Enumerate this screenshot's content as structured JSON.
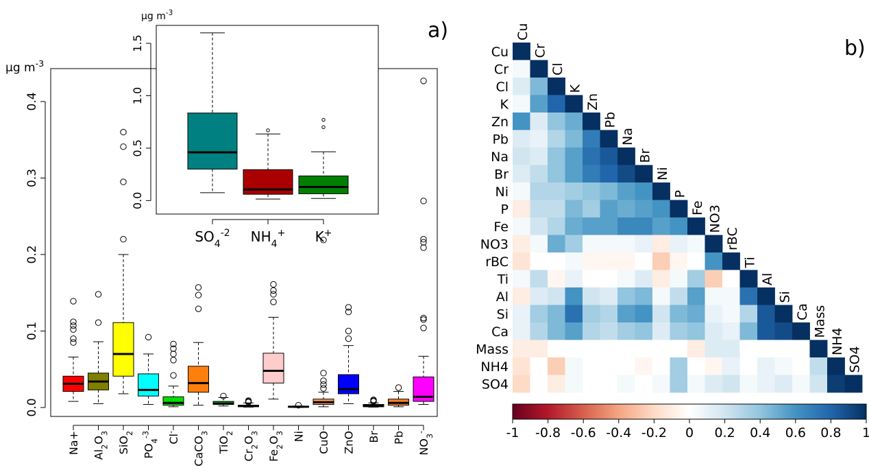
{
  "panels": {
    "a": "a)",
    "b": "b)"
  },
  "chart_data": [
    {
      "type": "box",
      "panel": "a-main",
      "ylabel": "µg m-3",
      "ylim": [
        0,
        0.45
      ],
      "yticks": [
        "0.0",
        "0.1",
        "0.2",
        "0.3",
        "0.4"
      ],
      "ytick_values": [
        0,
        0.1,
        0.2,
        0.3,
        0.4
      ],
      "categories": [
        "Na+",
        "Al2O3",
        "SiO2",
        "PO4-3",
        "Cl-",
        "CaCO3",
        "TiO2",
        "Cr2O3",
        "Fe2O3",
        "Ni",
        "CuO",
        "ZnO",
        "Br",
        "Pb",
        "NO3-"
      ],
      "category_labels": [
        {
          "base": "Na+",
          "sub": "",
          "sup": ""
        },
        {
          "base": "Al",
          "sub": "2",
          "sup": "",
          "tail": "O",
          "tailsub": "3"
        },
        {
          "base": "SiO",
          "sub": "2",
          "sup": ""
        },
        {
          "base": "PO",
          "sub": "4",
          "sup": "-3"
        },
        {
          "base": "Cl",
          "sub": "",
          "sup": "-"
        },
        {
          "base": "CaCO",
          "sub": "3",
          "sup": ""
        },
        {
          "base": "TiO",
          "sub": "2",
          "sup": ""
        },
        {
          "base": "Cr",
          "sub": "2",
          "sup": "",
          "tail": "O",
          "tailsub": "3"
        },
        {
          "base": "Fe",
          "sub": "2",
          "sup": "",
          "tail": "O",
          "tailsub": "3"
        },
        {
          "base": "Ni",
          "sub": "",
          "sup": ""
        },
        {
          "base": "CuO",
          "sub": "",
          "sup": ""
        },
        {
          "base": "ZnO",
          "sub": "",
          "sup": ""
        },
        {
          "base": "Br",
          "sub": "",
          "sup": ""
        },
        {
          "base": "Pb",
          "sub": "",
          "sup": ""
        },
        {
          "base": "NO",
          "sub": "3",
          "sup": "-"
        }
      ],
      "boxes": [
        {
          "color": "#ff0000",
          "wlo": 0.008,
          "q1": 0.021,
          "med": 0.031,
          "q3": 0.041,
          "whi": 0.066,
          "out": [
            0.085,
            0.09,
            0.102,
            0.107,
            0.112,
            0.139
          ]
        },
        {
          "color": "#808000",
          "wlo": 0.005,
          "q1": 0.023,
          "med": 0.034,
          "q3": 0.045,
          "whi": 0.086,
          "out": [
            0.111,
            0.148
          ]
        },
        {
          "color": "#ffff00",
          "wlo": 0.018,
          "q1": 0.041,
          "med": 0.07,
          "q3": 0.111,
          "whi": 0.2,
          "out": [
            0.22,
            0.295,
            0.341,
            0.36
          ]
        },
        {
          "color": "#00ffff",
          "wlo": 0.004,
          "q1": 0.015,
          "med": 0.023,
          "q3": 0.044,
          "whi": 0.07,
          "out": [
            0.092
          ]
        },
        {
          "color": "#00e000",
          "wlo": 0.001,
          "q1": 0.003,
          "med": 0.006,
          "q3": 0.014,
          "whi": 0.028,
          "out": [
            0.042,
            0.062,
            0.07,
            0.077,
            0.083
          ]
        },
        {
          "color": "#ff7f0e",
          "wlo": 0.003,
          "q1": 0.02,
          "med": 0.032,
          "q3": 0.054,
          "whi": 0.085,
          "out": [
            0.129,
            0.147,
            0.157
          ]
        },
        {
          "color": "#00a000",
          "wlo": 0.002,
          "q1": 0.004,
          "med": 0.005,
          "q3": 0.008,
          "whi": 0.013,
          "out": [
            0.015
          ]
        },
        {
          "color": "#000000",
          "wlo": 0.0005,
          "q1": 0.001,
          "med": 0.002,
          "q3": 0.003,
          "whi": 0.006,
          "out": [
            0.007,
            0.008,
            0.009
          ]
        },
        {
          "color": "#ffcccc",
          "wlo": 0.011,
          "q1": 0.032,
          "med": 0.048,
          "q3": 0.071,
          "whi": 0.118,
          "out": [
            0.138,
            0.148,
            0.153,
            0.161
          ]
        },
        {
          "color": "#000000",
          "wlo": 0.0,
          "q1": 0.0005,
          "med": 0.001,
          "q3": 0.0015,
          "whi": 0.002,
          "out": [
            0.003
          ]
        },
        {
          "color": "#ff9955",
          "wlo": 0.001,
          "q1": 0.004,
          "med": 0.007,
          "q3": 0.011,
          "whi": 0.02,
          "out": [
            0.025,
            0.03,
            0.035,
            0.045,
            0.219
          ]
        },
        {
          "color": "#0000ff",
          "wlo": 0.005,
          "q1": 0.018,
          "med": 0.024,
          "q3": 0.043,
          "whi": 0.081,
          "out": [
            0.09,
            0.1,
            0.125,
            0.131
          ]
        },
        {
          "color": "#000000",
          "wlo": 0.0005,
          "q1": 0.001,
          "med": 0.002,
          "q3": 0.004,
          "whi": 0.006,
          "out": [
            0.008,
            0.009,
            0.01
          ]
        },
        {
          "color": "#ff7f2a",
          "wlo": 0.001,
          "q1": 0.003,
          "med": 0.006,
          "q3": 0.011,
          "whi": 0.021,
          "out": [
            0.026
          ]
        },
        {
          "color": "#ff00ff",
          "wlo": 0.004,
          "q1": 0.008,
          "med": 0.014,
          "q3": 0.04,
          "whi": 0.067,
          "out": [
            0.104,
            0.115,
            0.117,
            0.209,
            0.216,
            0.22,
            0.27,
            0.427
          ]
        }
      ]
    },
    {
      "type": "box",
      "panel": "a-inset",
      "ylabel": "µg m-3",
      "ylim": [
        -0.05,
        1.7
      ],
      "yticks": [
        "0.0",
        "0.5",
        "1.0",
        "1.5"
      ],
      "ytick_values": [
        0,
        0.5,
        1.0,
        1.5
      ],
      "categories": [
        "SO4-2",
        "NH4+",
        "K+"
      ],
      "category_labels": [
        {
          "base": "SO",
          "sub": "4",
          "sup": "-2"
        },
        {
          "base": "NH",
          "sub": "4",
          "sup": "+"
        },
        {
          "base": "K",
          "sub": "",
          "sup": "+"
        }
      ],
      "boxes": [
        {
          "color": "#008080",
          "wlo": 0.075,
          "q1": 0.3,
          "med": 0.46,
          "q3": 0.835,
          "whi": 1.6,
          "out": []
        },
        {
          "color": "#aa0000",
          "wlo": 0.015,
          "q1": 0.06,
          "med": 0.105,
          "q3": 0.295,
          "whi": 0.635,
          "out": [
            0.67
          ]
        },
        {
          "color": "#008000",
          "wlo": 0.02,
          "q1": 0.065,
          "med": 0.13,
          "q3": 0.235,
          "whi": 0.465,
          "out": [
            0.7,
            0.77
          ]
        }
      ]
    },
    {
      "type": "heatmap",
      "panel": "b",
      "variables": [
        "Cu",
        "Cr",
        "Cl",
        "K",
        "Zn",
        "Pb",
        "Na",
        "Br",
        "Ni",
        "P",
        "Fe",
        "NO3",
        "rBC",
        "Ti",
        "Al",
        "Si",
        "Ca",
        "Mass",
        "NH4",
        "SO4"
      ],
      "matrix_lower": [
        [
          1
        ],
        [
          0.05,
          1
        ],
        [
          0.15,
          0.45,
          1
        ],
        [
          0.05,
          0.55,
          0.8,
          1
        ],
        [
          0.6,
          0.15,
          0.4,
          0.5,
          1
        ],
        [
          0.15,
          0.1,
          0.3,
          0.45,
          0.7,
          1
        ],
        [
          0.2,
          0.15,
          0.4,
          0.55,
          0.75,
          0.85,
          1
        ],
        [
          0.15,
          0.25,
          0.4,
          0.55,
          0.7,
          0.8,
          0.9,
          1
        ],
        [
          0.05,
          0.3,
          0.3,
          0.35,
          0.4,
          0.45,
          0.55,
          0.6,
          1
        ],
        [
          -0.1,
          0.25,
          0.25,
          0.45,
          0.35,
          0.55,
          0.5,
          0.55,
          0.6,
          1
        ],
        [
          0.05,
          0.2,
          0.3,
          0.5,
          0.55,
          0.55,
          0.65,
          0.65,
          0.55,
          0.6,
          1
        ],
        [
          -0.1,
          0.05,
          0.5,
          0.35,
          0.05,
          0.05,
          0.05,
          0.1,
          -0.1,
          0.1,
          0.05,
          1
        ],
        [
          -0.15,
          0.0,
          0.0,
          0.05,
          -0.05,
          -0.05,
          -0.05,
          0.0,
          -0.25,
          -0.05,
          0.0,
          0.6,
          1
        ],
        [
          0.05,
          0.25,
          -0.05,
          0.1,
          0.0,
          0.0,
          0.05,
          0.15,
          -0.1,
          0.05,
          0.35,
          -0.25,
          0.0,
          1
        ],
        [
          -0.1,
          0.15,
          0.2,
          0.6,
          0.2,
          0.15,
          0.4,
          0.45,
          0.05,
          0.25,
          0.55,
          0.05,
          0.05,
          0.75,
          1
        ],
        [
          0.1,
          0.35,
          0.45,
          0.75,
          0.35,
          0.3,
          0.55,
          0.6,
          0.2,
          0.45,
          0.5,
          0.1,
          0.05,
          0.3,
          0.85,
          1
        ],
        [
          0.1,
          0.3,
          0.45,
          0.55,
          0.3,
          0.25,
          0.35,
          0.4,
          0.15,
          0.35,
          0.4,
          0.15,
          0.1,
          0.45,
          0.85,
          0.9,
          1
        ],
        [
          -0.1,
          -0.1,
          0.0,
          0.0,
          0.0,
          0.0,
          0.0,
          0.0,
          0.0,
          0.0,
          -0.1,
          0.15,
          0.15,
          0.0,
          0.0,
          0.0,
          0.0,
          1
        ],
        [
          -0.15,
          0.0,
          -0.25,
          0.05,
          0.0,
          0.0,
          0.0,
          -0.05,
          0.0,
          0.35,
          0.0,
          -0.05,
          0.1,
          0.0,
          0.1,
          0.05,
          0.0,
          0.25,
          1
        ],
        [
          -0.2,
          0.0,
          -0.1,
          0.05,
          0.0,
          0.0,
          0.05,
          0.0,
          0.05,
          0.35,
          0.05,
          0.15,
          0.2,
          0.05,
          0.1,
          0.15,
          0.05,
          0.2,
          0.95,
          1
        ]
      ],
      "colorbar": {
        "range": [
          -1,
          1
        ],
        "ticks": [
          -1,
          -0.8,
          -0.6,
          -0.4,
          -0.2,
          0,
          0.2,
          0.4,
          0.6,
          0.8,
          1
        ],
        "tick_labels": [
          "-1",
          "-0.8",
          "-0.6",
          "-0.4",
          "-0.2",
          "0",
          "0.2",
          "0.4",
          "0.6",
          "0.8",
          "1"
        ],
        "colors": [
          "#67001f",
          "#b2182b",
          "#d6604d",
          "#f4a582",
          "#fddbc7",
          "#ffffff",
          "#d1e5f0",
          "#92c5de",
          "#4393c3",
          "#2166ac",
          "#053061"
        ]
      }
    }
  ]
}
